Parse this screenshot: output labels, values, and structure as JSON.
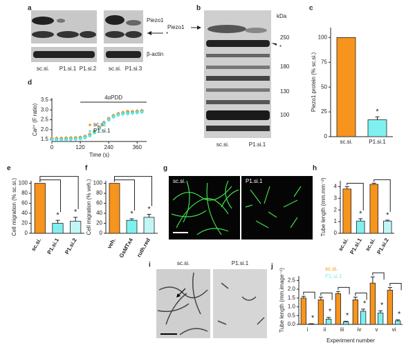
{
  "panels": {
    "letters": [
      "a",
      "b",
      "c",
      "d",
      "e",
      "f",
      "g",
      "h",
      "i",
      "j"
    ],
    "blot_a": {
      "labels": [
        "Piezo1",
        "*",
        "β-actin"
      ],
      "lanes": [
        "sc.si.",
        "P1.si.1",
        "P1.si.2",
        "sc.si.",
        "P1.si.3"
      ]
    },
    "blot_b": {
      "unit": "kDa",
      "band": "Piezo1",
      "markers": [
        "250",
        "180",
        "130",
        "100"
      ],
      "star": "*",
      "lanes": [
        "sc.si.",
        "P1.si.1"
      ]
    },
    "images_g": [
      "sc.si.",
      "P1.si.1"
    ],
    "images_i": [
      "sc.si.",
      "P1.si.1"
    ]
  },
  "chart_data": [
    {
      "type": "bar",
      "ylabel": "Piezo1 protein (% sc.si.)",
      "categories": [
        "sc.si.",
        "P1.si.1"
      ],
      "values": [
        100,
        17
      ],
      "errors": [
        0,
        3
      ],
      "colors": [
        "#f7941d",
        "#7ff0f0"
      ],
      "significant": [
        false,
        true
      ],
      "star": "*",
      "ylim": [
        0,
        110
      ],
      "yticks": [
        0,
        25,
        50,
        75,
        100
      ]
    },
    {
      "type": "line",
      "ylabel": "Ca²⁺ (F ratio)",
      "xlabel": "Time (s)",
      "annotation": "4αPDD",
      "x": [
        0,
        20,
        40,
        60,
        80,
        100,
        120,
        140,
        160,
        180,
        200,
        220,
        240,
        260,
        280,
        300,
        320,
        340,
        360,
        380
      ],
      "series": [
        {
          "name": "sc.si.",
          "color": "#f7941d",
          "values": [
            1.55,
            1.55,
            1.55,
            1.56,
            1.57,
            1.58,
            1.6,
            1.65,
            1.75,
            1.9,
            2.1,
            2.35,
            2.55,
            2.7,
            2.8,
            2.85,
            2.9,
            2.9,
            2.92,
            2.95
          ]
        },
        {
          "name": "P1.si.1",
          "color": "#5ee6e6",
          "values": [
            1.5,
            1.5,
            1.5,
            1.5,
            1.52,
            1.53,
            1.55,
            1.6,
            1.7,
            1.85,
            2.05,
            2.3,
            2.5,
            2.65,
            2.75,
            2.8,
            2.82,
            2.85,
            2.87,
            2.9
          ]
        }
      ],
      "xlim": [
        0,
        400
      ],
      "xticks": [
        0,
        120,
        240,
        360
      ],
      "ylim": [
        1.4,
        3.6
      ],
      "yticks": [
        1.5,
        {
          "value": 2,
          "label": "2.0"
        },
        2.5,
        {
          "value": 3,
          "label": "3.0"
        },
        3.5
      ]
    },
    {
      "type": "bar",
      "ylabel": "Cell migration (% sc.si.)",
      "categories": [
        "sc.si.",
        "P1.si.1",
        "P1.si.2"
      ],
      "values": [
        100,
        20,
        24
      ],
      "errors": [
        0,
        6,
        8
      ],
      "colors": [
        "#f7941d",
        "#7ff0f0",
        "#c2f6f6"
      ],
      "significant": [
        false,
        true,
        true
      ],
      "star": "*",
      "ylim": [
        0,
        105
      ],
      "yticks": [
        0,
        20,
        40,
        60,
        80,
        100
      ]
    },
    {
      "type": "bar",
      "ylabel": "Cell migration (% veh.)",
      "categories": [
        "veh.",
        "GsMTx4",
        "ruth.red"
      ],
      "values": [
        100,
        26,
        32
      ],
      "errors": [
        0,
        3,
        6
      ],
      "colors": [
        "#f7941d",
        "#7ff0f0",
        "#c2f6f6"
      ],
      "significant": [
        false,
        true,
        true
      ],
      "star": "*",
      "ylim": [
        0,
        105
      ],
      "yticks": [
        0,
        20,
        40,
        60,
        80,
        100
      ]
    },
    {
      "type": "bar",
      "ylabel": "Tube length (mm.mm⁻²)",
      "categories": [
        "sc.si.",
        "P1.si.1",
        "sc.si.",
        "P1.si.2"
      ],
      "values": [
        3.8,
        1.05,
        4.2,
        1.05
      ],
      "errors": [
        0.2,
        0.2,
        0.1,
        0.08
      ],
      "colors": [
        "#f7941d",
        "#7ff0f0",
        "#f7941d",
        "#c2f6f6"
      ],
      "significant": [
        false,
        true,
        false,
        true
      ],
      "star": "*",
      "ylim": [
        0,
        4.5
      ],
      "yticks": [
        0,
        1,
        2,
        3,
        4
      ]
    },
    {
      "type": "grouped",
      "ylabel": "Tube length (mm.image⁻¹)",
      "xlabel": "Experiment number",
      "categories": [
        "i",
        "ii",
        "iii",
        "iv",
        "v",
        "vi"
      ],
      "series": [
        {
          "name": "sc.si.",
          "color": "#f7941d",
          "values": [
            1.5,
            1.4,
            1.75,
            1.4,
            2.35,
            1.95
          ],
          "errors": [
            0.1,
            0.15,
            0.12,
            0.15,
            0.35,
            0.15
          ]
        },
        {
          "name": "P1.si.1",
          "color": "#7ff0f0",
          "values": [
            0.03,
            0.3,
            0.15,
            0.75,
            0.65,
            0.2
          ],
          "errors": [
            0.01,
            0.1,
            0.03,
            0.12,
            0.12,
            0.06
          ]
        }
      ],
      "significant": [
        true,
        true,
        true,
        true,
        true,
        true
      ],
      "star": "*",
      "ylim": [
        0,
        2.75
      ],
      "yticks": [
        {
          "value": 0,
          "label": "0.0"
        },
        0.5,
        {
          "value": 1,
          "label": "1.0"
        },
        1.5,
        {
          "value": 2,
          "label": "2.0"
        },
        2.5
      ]
    }
  ]
}
